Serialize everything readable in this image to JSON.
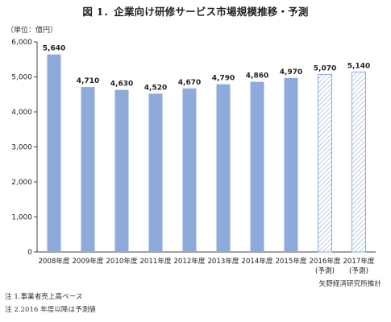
{
  "chart_data": {
    "type": "bar",
    "title": "図 1．企業向け研修サービス市場規模推移・予測",
    "unit_label": "（単位：億円）",
    "ylim": [
      0,
      6000
    ],
    "yticks": [
      "0",
      "1,000",
      "2,000",
      "3,000",
      "4,000",
      "5,000",
      "6,000"
    ],
    "categories": [
      [
        "2008年度"
      ],
      [
        "2009年度"
      ],
      [
        "2010年度"
      ],
      [
        "2011年度"
      ],
      [
        "2012年度"
      ],
      [
        "2013年度"
      ],
      [
        "2014年度"
      ],
      [
        "2015年度"
      ],
      [
        "2016年度",
        "(予測)"
      ],
      [
        "2017年度",
        "(予測)"
      ]
    ],
    "values": [
      5640,
      4710,
      4630,
      4520,
      4670,
      4790,
      4860,
      4970,
      5070,
      5140
    ],
    "value_labels": [
      "5,640",
      "4,710",
      "4,630",
      "4,520",
      "4,670",
      "4,790",
      "4,860",
      "4,970",
      "5,070",
      "5,140"
    ],
    "forecast": [
      false,
      false,
      false,
      false,
      false,
      false,
      false,
      false,
      true,
      true
    ],
    "bar_color": "#8eaadb",
    "grid": false
  },
  "notes": [
    "注 1.事業者売上高ベース",
    "注 2.2016 年度以降は予測値"
  ],
  "source": "矢野経済研究所推計"
}
